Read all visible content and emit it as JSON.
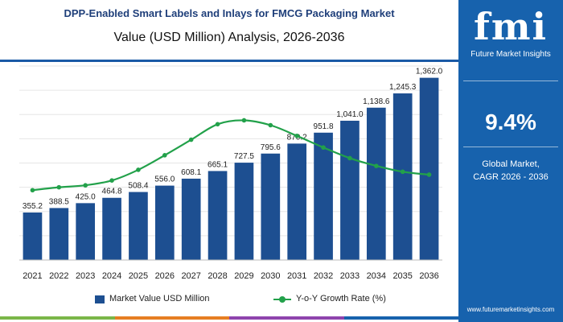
{
  "header": {
    "title": "DPP-Enabled Smart Labels and Inlays for FMCG Packaging Market",
    "subtitle": "Value (USD Million) Analysis, 2026-2036"
  },
  "sidebar": {
    "logo_text": "fmi",
    "logo_subtitle": "Future Market Insights",
    "cagr_value": "9.4%",
    "cagr_label_line1": "Global Market,",
    "cagr_label_line2": "CAGR 2026 - 2036",
    "website": "www.futuremarketinsights.com"
  },
  "legend": {
    "bar_label": "Market Value USD Million",
    "line_label": "Y-o-Y Growth Rate (%)"
  },
  "colors": {
    "bar": "#1d4f91",
    "line": "#22a14a",
    "panel": "#1762ad",
    "bottom_strip": [
      "#7ab648",
      "#e67e22",
      "#8e44ad",
      "#1762ad"
    ]
  },
  "chart_data": {
    "type": "bar",
    "categories": [
      "2021",
      "2022",
      "2023",
      "2024",
      "2025",
      "2026",
      "2027",
      "2028",
      "2029",
      "2030",
      "2031",
      "2032",
      "2033",
      "2034",
      "2035",
      "2036"
    ],
    "series": [
      {
        "name": "Market Value USD Million",
        "type": "bar",
        "values": [
          355.2,
          388.5,
          425.0,
          464.8,
          508.4,
          556.0,
          608.1,
          665.1,
          727.5,
          795.6,
          870.2,
          951.8,
          1041.0,
          1138.6,
          1245.3,
          1362.0
        ],
        "labels": [
          "355.2",
          "388.5",
          "425.0",
          "464.8",
          "508.4",
          "556.0",
          "608.1",
          "665.1",
          "727.5",
          "795.6",
          "870.2",
          "951.8",
          "1,041.0",
          "1,138.6",
          "1,245.3",
          "1,362.0"
        ]
      },
      {
        "name": "Y-o-Y Growth Rate (%)",
        "type": "line",
        "values": [
          7.2,
          7.5,
          7.7,
          8.2,
          9.3,
          10.8,
          12.4,
          14.0,
          14.4,
          13.9,
          12.8,
          11.6,
          10.5,
          9.7,
          9.1,
          8.8
        ]
      }
    ],
    "ylim": [
      0,
      1450
    ],
    "y2lim": [
      0,
      20
    ],
    "grid": "horizontal"
  }
}
